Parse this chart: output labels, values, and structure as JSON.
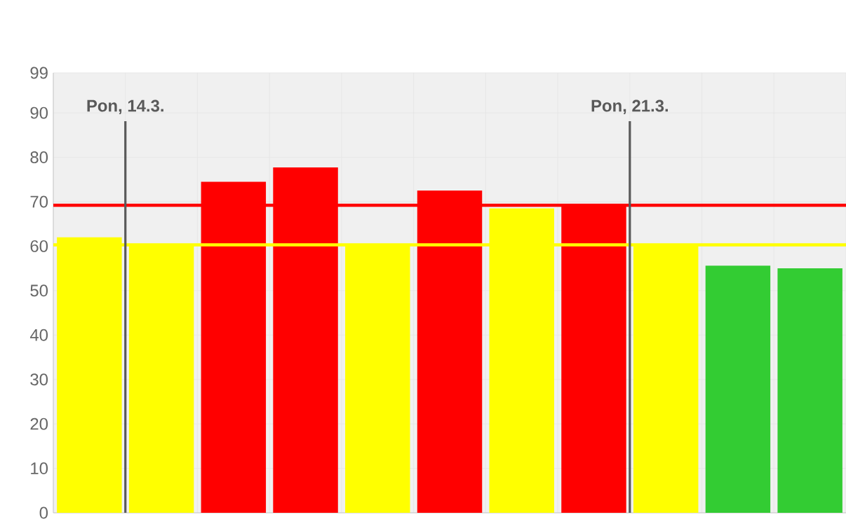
{
  "chart_data": {
    "type": "bar",
    "categories": [
      null,
      null,
      null,
      null,
      null,
      null,
      null,
      null,
      null,
      null,
      null
    ],
    "values": [
      62,
      60.5,
      74.5,
      77.7,
      60.5,
      72.5,
      68.5,
      69.5,
      60.5,
      55.6,
      55
    ],
    "colors": [
      "#ffff00",
      "#ffff00",
      "#ff0000",
      "#ff0000",
      "#ffff00",
      "#ff0000",
      "#ffff00",
      "#ff0000",
      "#ffff00",
      "#33cc33",
      "#33cc33"
    ],
    "ylim": [
      0,
      99
    ],
    "yticks": [
      0,
      10,
      20,
      30,
      40,
      50,
      60,
      70,
      80,
      90,
      99
    ],
    "grid": true,
    "ref_lines": [
      {
        "axis": "y",
        "value": 69.2,
        "label": null,
        "color": "#ff0000"
      },
      {
        "axis": "y",
        "value": 60.3,
        "label": null,
        "color": "#ffff00"
      }
    ],
    "annotations": [
      "Pon, 14.3.",
      "Pon, 21.3."
    ]
  }
}
